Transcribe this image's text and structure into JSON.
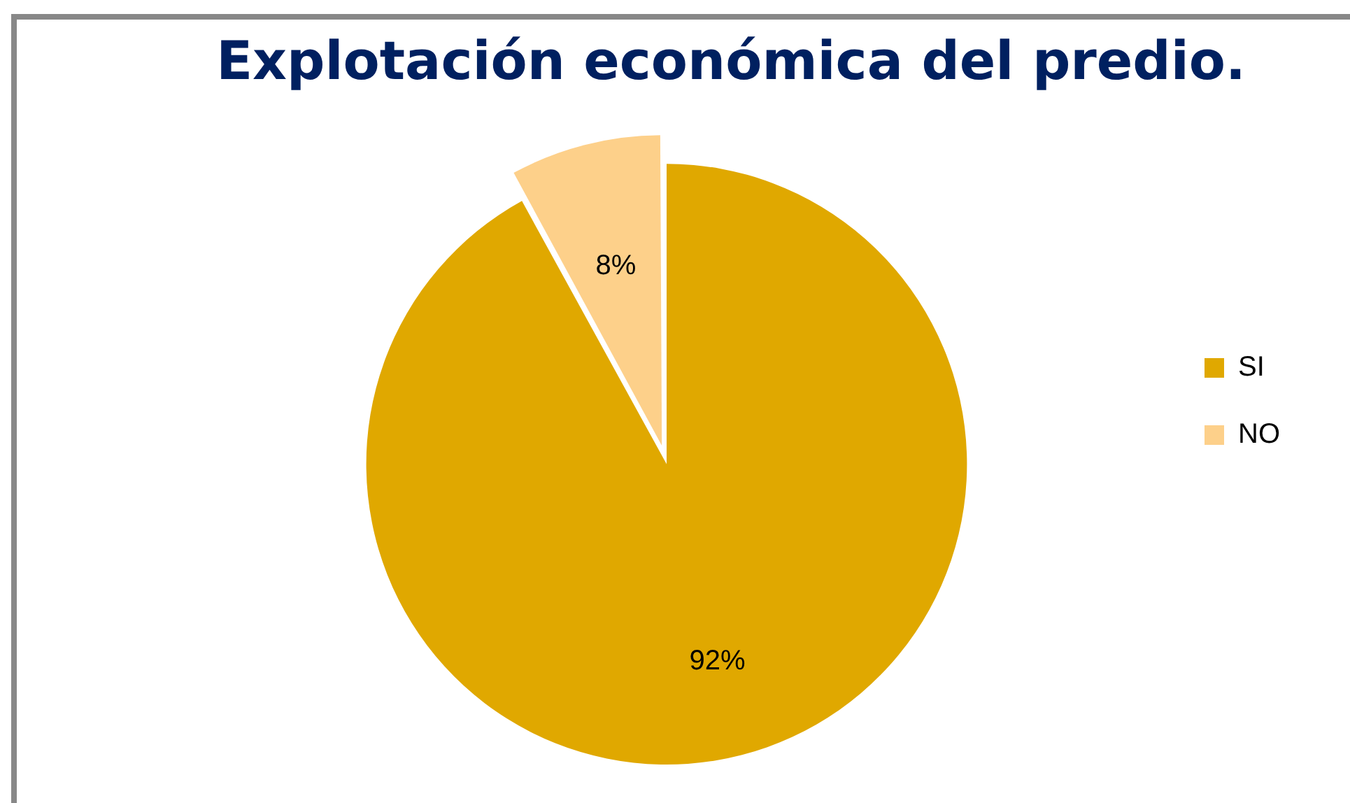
{
  "chart_data": {
    "type": "pie",
    "title": "Explotación económica del predio.",
    "categories": [
      "SI",
      "NO"
    ],
    "values": [
      92,
      8
    ],
    "colors": [
      "#e0a800",
      "#fdd08a"
    ],
    "value_labels": [
      "92%",
      "8%"
    ],
    "legend": "right"
  }
}
